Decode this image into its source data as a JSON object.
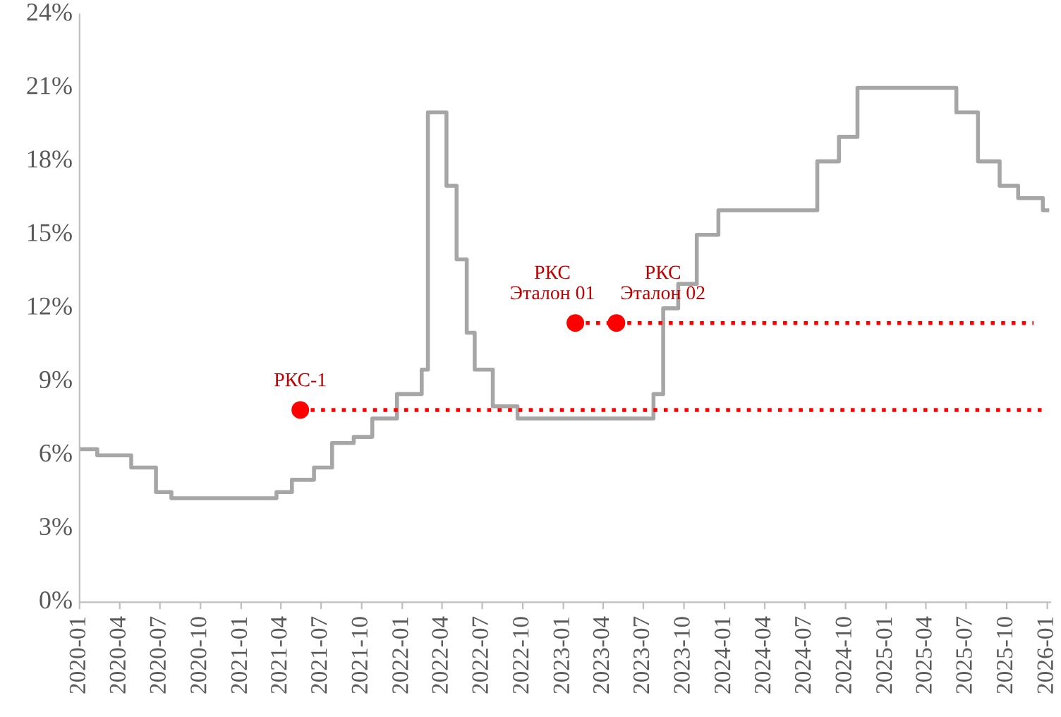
{
  "chart_data": {
    "type": "step",
    "xlim": [
      "2020-01-01",
      "2026-01-08"
    ],
    "ylim": [
      0,
      24
    ],
    "xticks": [
      "2020-01",
      "2020-04",
      "2020-07",
      "2020-10",
      "2021-01",
      "2021-04",
      "2021-07",
      "2021-10",
      "2022-01",
      "2022-04",
      "2022-07",
      "2022-10",
      "2023-01",
      "2023-04",
      "2023-07",
      "2023-10",
      "2024-01",
      "2024-04",
      "2024-07",
      "2024-10",
      "2025-01",
      "2025-04",
      "2025-07",
      "2025-10",
      "2026-01"
    ],
    "yticks": [
      {
        "value": 0,
        "label": "0%"
      },
      {
        "value": 3,
        "label": "3%"
      },
      {
        "value": 6,
        "label": "6%"
      },
      {
        "value": 9,
        "label": "9%"
      },
      {
        "value": 12,
        "label": "12%"
      },
      {
        "value": 15,
        "label": "15%"
      },
      {
        "value": 18,
        "label": "18%"
      },
      {
        "value": 21,
        "label": "21%"
      },
      {
        "value": 24,
        "label": "24%"
      }
    ],
    "grid": false,
    "series": [
      {
        "color": "#a6a6a6",
        "line_style": "solid",
        "marker": "none",
        "x": [
          "2020-01-01",
          "2020-02-10",
          "2020-04-27",
          "2020-06-22",
          "2020-07-27",
          "2021-03-22",
          "2021-04-26",
          "2021-06-15",
          "2021-07-26",
          "2021-09-13",
          "2021-10-25",
          "2021-12-20",
          "2022-02-14",
          "2022-02-28",
          "2022-04-11",
          "2022-05-04",
          "2022-05-27",
          "2022-06-14",
          "2022-07-25",
          "2022-09-19",
          "2023-07-24",
          "2023-08-15",
          "2023-09-18",
          "2023-10-30",
          "2023-12-18",
          "2024-07-29",
          "2024-09-16",
          "2024-10-28",
          "2025-06-09",
          "2025-07-28",
          "2025-09-15",
          "2025-10-27",
          "2025-12-22",
          "2026-01-01"
        ],
        "values": [
          6.25,
          6.0,
          5.5,
          4.5,
          4.25,
          4.5,
          5.0,
          5.5,
          6.5,
          6.75,
          7.5,
          8.5,
          9.5,
          20,
          17,
          14,
          11,
          9.5,
          8,
          7.5,
          8.5,
          12,
          13,
          15,
          16,
          18,
          19,
          21,
          20,
          18,
          17,
          16.5,
          16,
          16
        ]
      },
      {
        "type": "line",
        "color": "#ff0000",
        "line_style": "dotted",
        "marker": "circle",
        "x": [
          "2021-05-15",
          "2026-01-01"
        ],
        "values": [
          7.85,
          7.85
        ]
      },
      {
        "type": "line",
        "color": "#ff0000",
        "line_style": "dotted",
        "marker": "circle",
        "x": [
          "2023-01-28",
          "2023-05-01",
          "2025-12-01"
        ],
        "values": [
          11.4,
          11.4,
          11.4
        ]
      }
    ],
    "annotations": [
      {
        "text": "РКС-1",
        "x": "2021-05-15",
        "y": 7.85
      },
      {
        "text": "РКС\nЭталон 01",
        "x": "2023-01-28",
        "y": 11.4
      },
      {
        "text": "РКС\nЭталон 02",
        "x": "2023-05-01",
        "y": 11.4
      }
    ]
  }
}
